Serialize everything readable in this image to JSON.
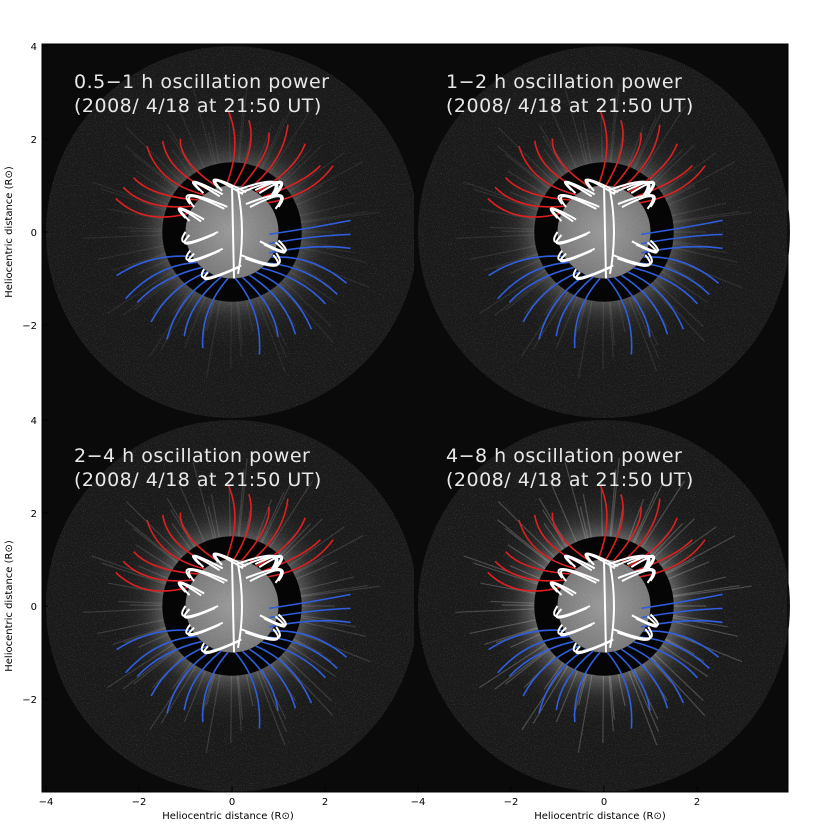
{
  "panels": [
    {
      "title_line1": "0.5−1 h oscillation power",
      "title_line2": "(2008/ 4/18 at 21:50 UT)",
      "halo_strength": 0.25
    },
    {
      "title_line1": "1−2 h oscillation power",
      "title_line2": "(2008/ 4/18 at 21:50 UT)",
      "halo_strength": 0.32
    },
    {
      "title_line1": "2−4 h oscillation power",
      "title_line2": "(2008/ 4/18 at 21:50 UT)",
      "halo_strength": 0.5
    },
    {
      "title_line1": "4−8 h oscillation power",
      "title_line2": "(2008/ 4/18 at 21:50 UT)",
      "halo_strength": 0.75
    }
  ],
  "axes": {
    "ylabel": "Heliocentric distance (R⊙)",
    "xlabel": "Heliocentric distance (R⊙)",
    "xticks": [
      "−4",
      "−2",
      "0",
      "2"
    ],
    "yticks": [
      "4",
      "2",
      "0",
      "−2"
    ],
    "tick_values": [
      -4,
      -2,
      0,
      2,
      4
    ]
  },
  "colors": {
    "open_field_north": "#e02020",
    "open_field_south": "#2f5fe0",
    "closed_loops": "#ffffff",
    "background": "#0a0a0a"
  }
}
